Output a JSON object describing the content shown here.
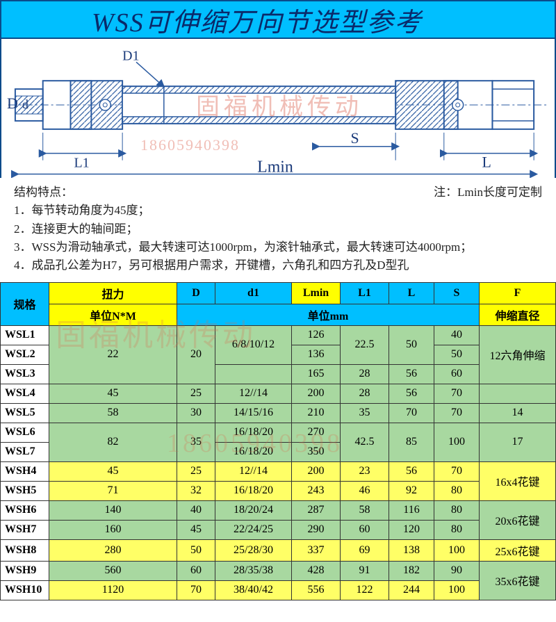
{
  "title": "WSS可伸缩万向节选型参考",
  "diagram": {
    "labels": {
      "D": "D",
      "d": "d",
      "D1": "D1",
      "L1": "L1",
      "Lmin": "Lmin",
      "S": "S",
      "L": "L"
    },
    "watermark_text": "固福机械传动",
    "watermark_phone": "18605940398"
  },
  "notes": {
    "heading": "结构特点：",
    "right_note": "注：Lmin长度可定制",
    "items": [
      "1．每节转动角度为45度；",
      "2．连接更大的轴间距；",
      "3．WSS为滑动轴承式，最大转速可达1000rpm，为滚针轴承式，最大转速可达4000rpm；",
      "4．成品孔公差为H7，另可根据用户需求，开键槽，六角孔和四方孔及D型孔"
    ]
  },
  "table": {
    "headers": {
      "model": "规格",
      "torque": "扭力",
      "D": "D",
      "d1": "d1",
      "Lmin": "Lmin",
      "L1": "L1",
      "L": "L",
      "S": "S",
      "F": "F",
      "torque_unit": "单位N*M",
      "mm_unit": "单位mm",
      "F_sub": "伸缩直径"
    },
    "rows": [
      {
        "model": "WSL1",
        "torque": "22",
        "D": "20",
        "d1": "6/8/10/12",
        "Lmin": "126",
        "L1": "22.5",
        "L": "50",
        "S": "40",
        "F": "12六角伸缩",
        "cls": "green",
        "merge": {
          "torque": 3,
          "D": 3,
          "d1": 2,
          "L1": 2,
          "L": 2,
          "F": 3
        }
      },
      {
        "model": "WSL2",
        "Lmin": "136",
        "S": "50",
        "cls": "green"
      },
      {
        "model": "WSL3",
        "d1": "",
        "Lmin": "165",
        "L1": "28",
        "L": "56",
        "S": "60",
        "cls": "green"
      },
      {
        "model": "WSL4",
        "torque": "45",
        "D": "25",
        "d1": "12//14",
        "Lmin": "200",
        "L1": "28",
        "L": "56",
        "S": "70",
        "F": "",
        "cls": "green"
      },
      {
        "model": "WSL5",
        "torque": "58",
        "D": "30",
        "d1": "14/15/16",
        "Lmin": "210",
        "L1": "35",
        "L": "70",
        "S": "70",
        "F": "14",
        "cls": "green"
      },
      {
        "model": "WSL6",
        "torque": "82",
        "D": "35",
        "d1": "16/18/20",
        "Lmin": "270",
        "L1": "42.5",
        "L": "85",
        "S": "100",
        "F": "17",
        "cls": "green",
        "merge": {
          "torque": 2,
          "D": 2,
          "L1": 2,
          "L": 2,
          "S": 2,
          "F": 2
        }
      },
      {
        "model": "WSL7",
        "d1": "16/18/20",
        "Lmin": "350",
        "cls": "green"
      },
      {
        "model": "WSH4",
        "torque": "45",
        "D": "25",
        "d1": "12//14",
        "Lmin": "200",
        "L1": "23",
        "L": "56",
        "S": "70",
        "F": "16x4花键",
        "cls": "yel",
        "merge": {
          "F": 2
        }
      },
      {
        "model": "WSH5",
        "torque": "71",
        "D": "32",
        "d1": "16/18/20",
        "Lmin": "243",
        "L1": "46",
        "L": "92",
        "S": "80",
        "cls": "yel"
      },
      {
        "model": "WSH6",
        "torque": "140",
        "D": "40",
        "d1": "18/20/24",
        "Lmin": "287",
        "L1": "58",
        "L": "116",
        "S": "80",
        "F": "20x6花键",
        "cls": "green",
        "merge": {
          "F": 2
        }
      },
      {
        "model": "WSH7",
        "torque": "160",
        "D": "45",
        "d1": "22/24/25",
        "Lmin": "290",
        "L1": "60",
        "L": "120",
        "S": "80",
        "cls": "green"
      },
      {
        "model": "WSH8",
        "torque": "280",
        "D": "50",
        "d1": "25/28/30",
        "Lmin": "337",
        "L1": "69",
        "L": "138",
        "S": "100",
        "F": "25x6花键",
        "cls": "yel"
      },
      {
        "model": "WSH9",
        "torque": "560",
        "D": "60",
        "d1": "28/35/38",
        "Lmin": "428",
        "L1": "91",
        "L": "182",
        "S": "90",
        "F": "35x6花键",
        "cls": "green",
        "merge": {
          "F": 2
        }
      },
      {
        "model": "WSH10",
        "torque": "1120",
        "D": "70",
        "d1": "38/40/42",
        "Lmin": "556",
        "L1": "122",
        "L": "244",
        "S": "100",
        "cls": "yel"
      }
    ],
    "col_order": [
      "model",
      "torque",
      "D",
      "d1",
      "Lmin",
      "L1",
      "L",
      "S",
      "F"
    ]
  },
  "table_watermark": {
    "line1": "固福机械传动",
    "line2": "18605940398"
  }
}
